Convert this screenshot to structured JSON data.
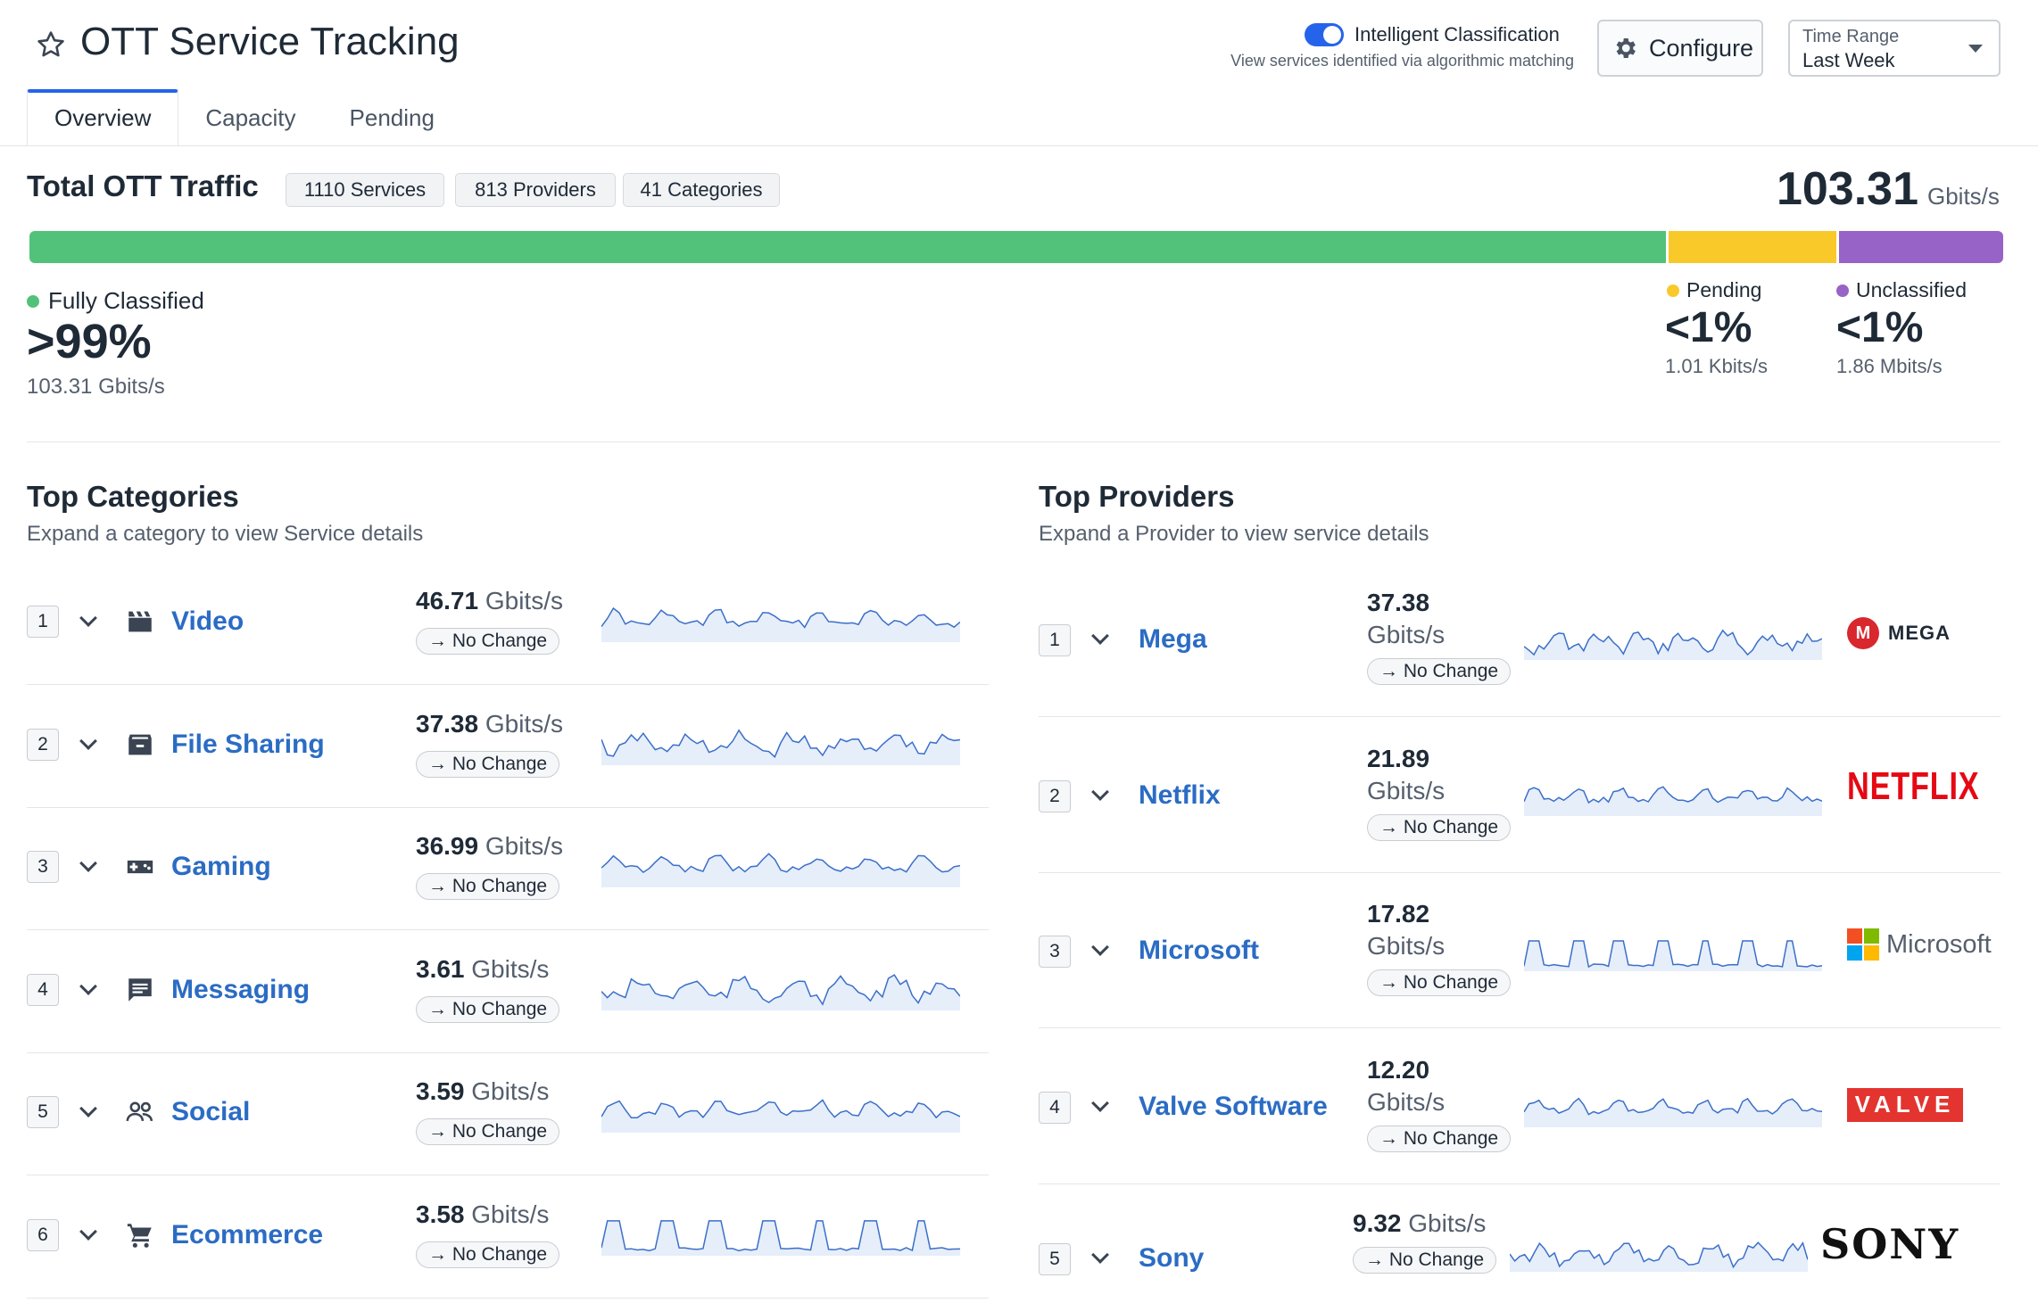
{
  "header": {
    "title": "OTT Service Tracking",
    "intelligent_label": "Intelligent Classification",
    "intelligent_sub": "View services identified via algorithmic matching",
    "configure_label": "Configure",
    "time_range_label": "Time Range",
    "time_range_value": "Last Week"
  },
  "tabs": [
    {
      "label": "Overview",
      "active": true
    },
    {
      "label": "Capacity",
      "active": false
    },
    {
      "label": "Pending",
      "active": false
    }
  ],
  "total": {
    "title": "Total OTT Traffic",
    "chips": [
      "1110 Services",
      "813 Providers",
      "41 Categories"
    ],
    "value": "103.31",
    "unit": "Gbits/s",
    "segments": [
      {
        "name": "Fully Classified",
        "color": "#52c27a"
      },
      {
        "name": "Pending",
        "color": "#f9c92a"
      },
      {
        "name": "Unclassified",
        "color": "#9863c6"
      }
    ],
    "fully": {
      "label": "Fully Classified",
      "pct": ">99%",
      "value": "103.31 Gbits/s"
    },
    "pending": {
      "label": "Pending",
      "pct": "<1%",
      "value": "1.01 Kbits/s"
    },
    "unclassified": {
      "label": "Unclassified",
      "pct": "<1%",
      "value": "1.86 Mbits/s"
    }
  },
  "categories": {
    "title": "Top Categories",
    "subtitle": "Expand a category to view Service details",
    "items": [
      {
        "rank": "1",
        "name": "Video",
        "value": "46.71",
        "unit": "Gbits/s",
        "change": "→ No Change",
        "icon": "clapperboard-icon"
      },
      {
        "rank": "2",
        "name": "File Sharing",
        "value": "37.38",
        "unit": "Gbits/s",
        "change": "→ No Change",
        "icon": "archive-icon"
      },
      {
        "rank": "3",
        "name": "Gaming",
        "value": "36.99",
        "unit": "Gbits/s",
        "change": "→ No Change",
        "icon": "gamepad-icon"
      },
      {
        "rank": "4",
        "name": "Messaging",
        "value": "3.61",
        "unit": "Gbits/s",
        "change": "→ No Change",
        "icon": "chat-icon"
      },
      {
        "rank": "5",
        "name": "Social",
        "value": "3.59",
        "unit": "Gbits/s",
        "change": "→ No Change",
        "icon": "people-icon"
      },
      {
        "rank": "6",
        "name": "Ecommerce",
        "value": "3.58",
        "unit": "Gbits/s",
        "change": "→ No Change",
        "icon": "cart-icon"
      }
    ]
  },
  "providers": {
    "title": "Top Providers",
    "subtitle": "Expand a Provider to view service details",
    "items": [
      {
        "rank": "1",
        "name": "Mega",
        "value": "37.38",
        "unit": "Gbits/s",
        "change": "→ No Change",
        "logo_text": "MEGA"
      },
      {
        "rank": "2",
        "name": "Netflix",
        "value": "21.89",
        "unit": "Gbits/s",
        "change": "→ No Change",
        "logo_text": "NETFLIX"
      },
      {
        "rank": "3",
        "name": "Microsoft",
        "value": "17.82",
        "unit": "Gbits/s",
        "change": "→ No Change",
        "logo_text": "Microsoft"
      },
      {
        "rank": "4",
        "name": "Valve Software",
        "value": "12.20",
        "unit": "Gbits/s",
        "change": "→ No Change",
        "logo_text": "VALVE"
      },
      {
        "rank": "5",
        "name": "Sony",
        "value": "9.32",
        "unit": "Gbits/s",
        "change": "→ No Change",
        "logo_text": "SONY"
      }
    ]
  },
  "colors": {
    "accent": "#2563eb",
    "link": "#2b6cc4",
    "spark": "#3b6fc9",
    "spark_fill": "#e6eefa"
  }
}
